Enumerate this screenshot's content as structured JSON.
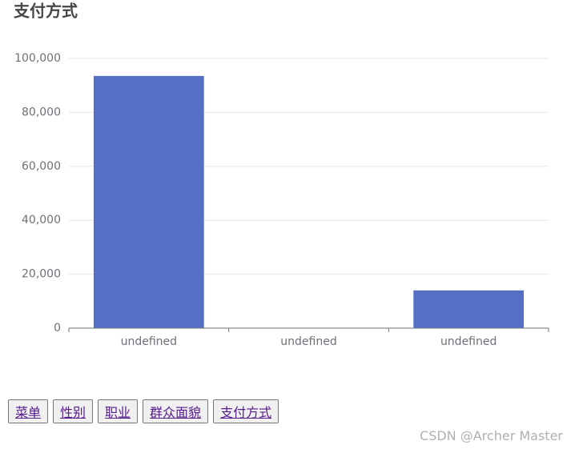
{
  "chart_data": {
    "type": "bar",
    "title": "支付方式",
    "categories": [
      "undefined",
      "undefined",
      "undefined"
    ],
    "values": [
      93500,
      0,
      14000
    ],
    "color": "#5470c6",
    "ylim": [
      0,
      100000
    ],
    "yticks": [
      0,
      {
        "value": 20000,
        "label": "20,000"
      },
      {
        "value": 40000,
        "label": "40,000"
      },
      {
        "value": 60000,
        "label": "60,000"
      },
      {
        "value": 80000,
        "label": "80,000"
      },
      {
        "value": 100000,
        "label": "100,000"
      }
    ],
    "grid": true
  },
  "buttons": [
    "菜单",
    "性别",
    "职业",
    "群众面貌",
    "支付方式"
  ],
  "watermark": "CSDN @Archer Master"
}
